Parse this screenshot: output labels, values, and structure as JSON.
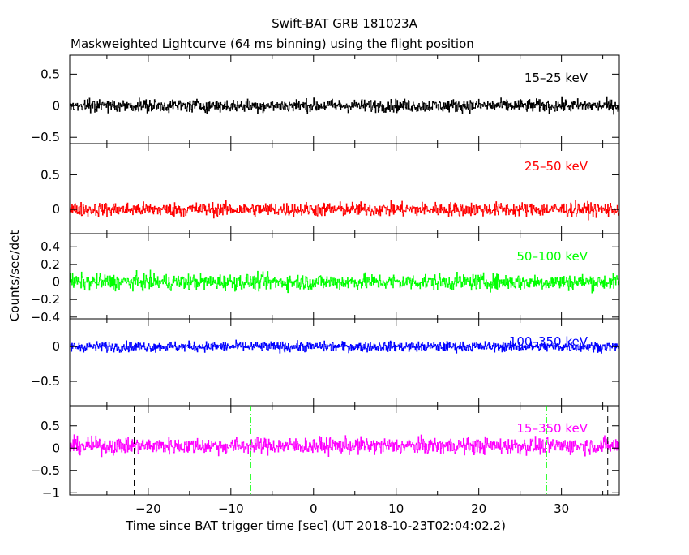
{
  "chart_data": {
    "type": "line",
    "title": "Swift-BAT GRB 181023A",
    "subtitle": "Maskweighted Lightcurve (64 ms binning) using the flight position",
    "xlabel": "Time since BAT trigger time [sec] (UT 2018-10-23T02:04:02.2)",
    "ylabel": "Counts/sec/det",
    "xlim": [
      -29.5,
      37
    ],
    "x_ticks": [
      -20,
      -10,
      0,
      10,
      20,
      30
    ],
    "bin_width_sec": 0.064,
    "vertical_markers": [
      {
        "x": -21.7,
        "color": "#000000",
        "style": "dashed"
      },
      {
        "x": -7.6,
        "color": "#00ff00",
        "style": "dashdot"
      },
      {
        "x": 28.2,
        "color": "#00ff00",
        "style": "dashdot"
      },
      {
        "x": 35.6,
        "color": "#000000",
        "style": "dashed"
      }
    ],
    "panels": [
      {
        "name": "15–25 keV",
        "color": "#000000",
        "ylim": [
          -0.6,
          0.8
        ],
        "y_ticks": [
          -0.5,
          0,
          0.5
        ],
        "mean": 0.0,
        "noise": 0.05
      },
      {
        "name": "25–50 keV",
        "color": "#ff0000",
        "ylim": [
          -0.35,
          0.95
        ],
        "y_ticks": [
          0,
          0.5
        ],
        "mean": 0.0,
        "noise": 0.05
      },
      {
        "name": "50–100 keV",
        "color": "#00ff00",
        "ylim": [
          -0.42,
          0.55
        ],
        "y_ticks": [
          -0.4,
          -0.2,
          0,
          0.2,
          0.4
        ],
        "mean": 0.0,
        "noise": 0.045
      },
      {
        "name": "100–350 keV",
        "color": "#0000ff",
        "ylim": [
          -0.85,
          0.4
        ],
        "y_ticks": [
          -0.5,
          0
        ],
        "mean": 0.0,
        "noise": 0.035
      },
      {
        "name": "15–350 keV",
        "color": "#ff00ff",
        "ylim": [
          -1.05,
          0.95
        ],
        "y_ticks": [
          -1,
          -0.5,
          0,
          0.5
        ],
        "mean": 0.05,
        "noise": 0.09
      }
    ]
  }
}
